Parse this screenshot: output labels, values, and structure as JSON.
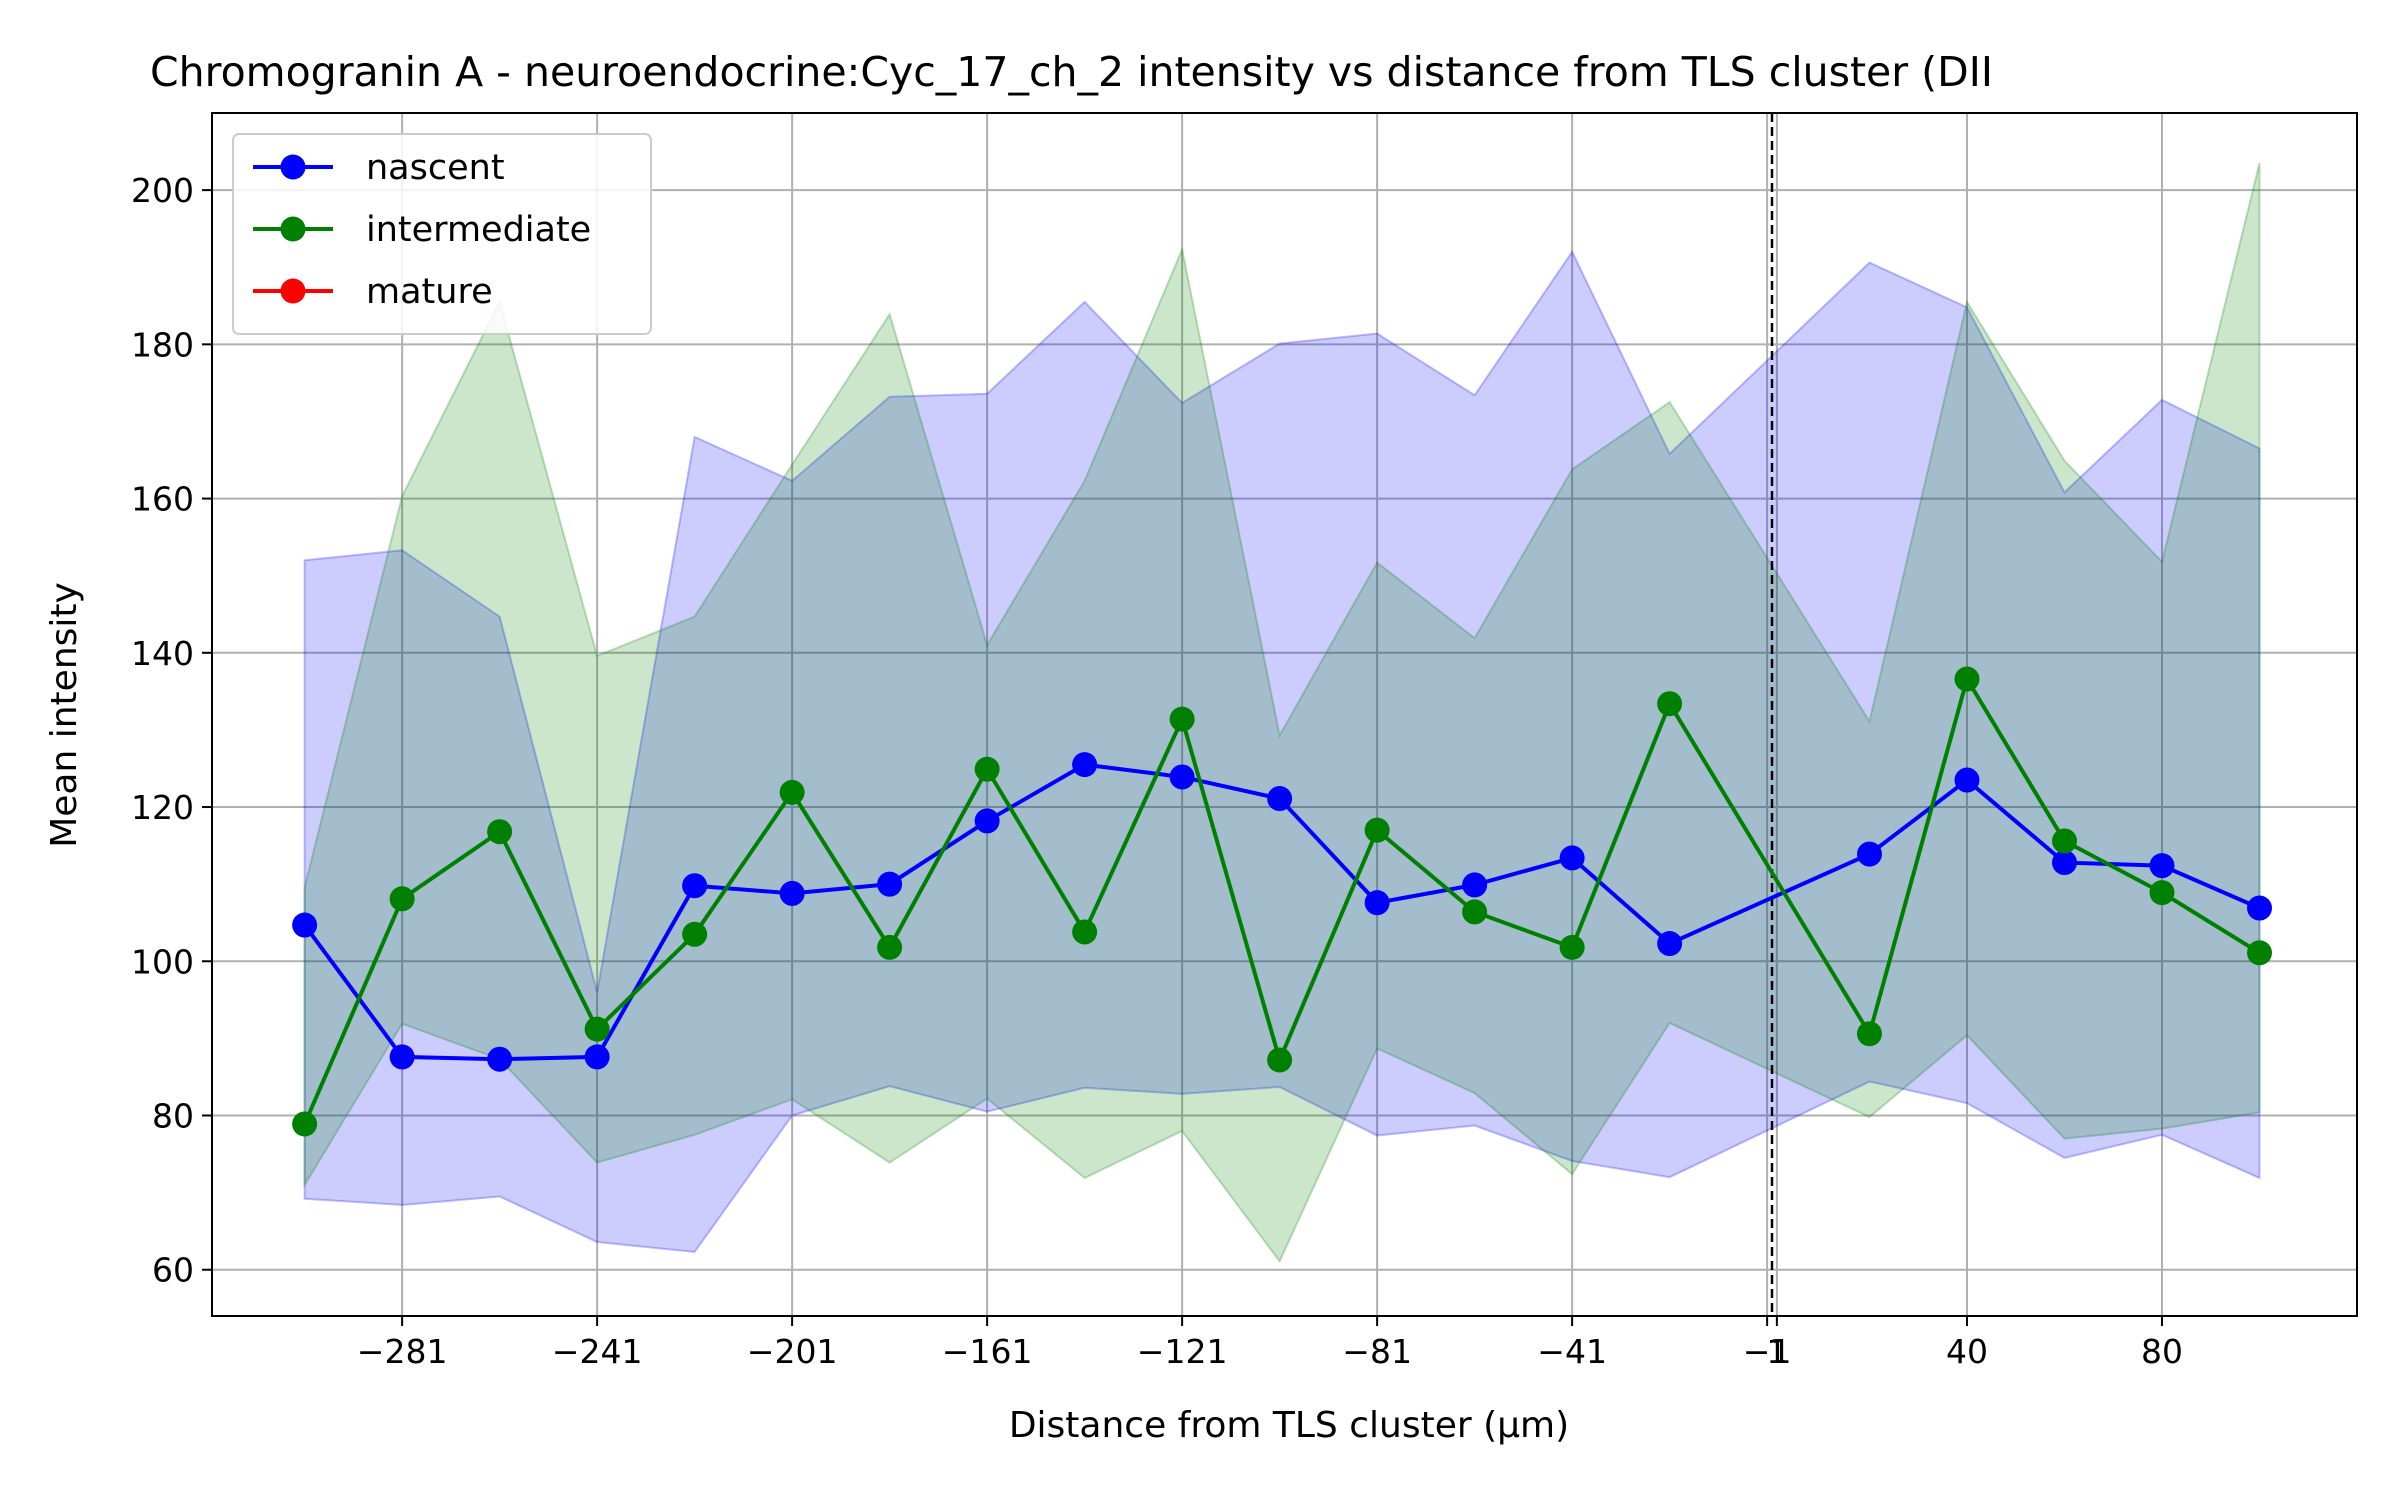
{
  "chart_data": {
    "type": "line",
    "title": "Chromogranin A - neuroendocrine:Cyc_17_ch_2 intensity vs distance from TLS cluster (DII",
    "xlabel": "Distance from TLS cluster (μm)",
    "ylabel": "Mean intensity",
    "xlim": [
      -320,
      120
    ],
    "ylim": [
      54,
      210
    ],
    "x_ticks": [
      -281,
      -241,
      -201,
      -161,
      -121,
      -81,
      -41,
      -1,
      1,
      40,
      80
    ],
    "x_tick_labels": [
      "−281",
      "−241",
      "−201",
      "−161",
      "−121",
      "−81",
      "−41",
      "−1",
      "1",
      "40",
      "80"
    ],
    "y_ticks": [
      60,
      80,
      100,
      120,
      140,
      160,
      180,
      200
    ],
    "y_tick_labels": [
      "60",
      "80",
      "100",
      "120",
      "140",
      "160",
      "180",
      "200"
    ],
    "grid": true,
    "legend_position": "top-left",
    "vline_x": 0,
    "series": [
      {
        "name": "nascent",
        "color": "#0000ff",
        "x": [
          -301,
          -281,
          -261,
          -241,
          -221,
          -201,
          -181,
          -161,
          -141,
          -121,
          -101,
          -81,
          -61,
          -41,
          -21,
          20,
          40,
          60,
          80,
          100
        ],
        "values": [
          104.7,
          87.6,
          87.3,
          87.6,
          109.8,
          108.8,
          110.0,
          118.2,
          125.5,
          123.9,
          121.1,
          107.6,
          109.9,
          113.4,
          102.3,
          113.9,
          123.5,
          112.8,
          112.4,
          106.9
        ],
        "band_upper": [
          152.0,
          153.3,
          144.7,
          96.0,
          168.0,
          162.3,
          173.2,
          173.6,
          185.5,
          172.4,
          180.1,
          181.4,
          173.4,
          192.0,
          165.8,
          190.6,
          184.8,
          160.8,
          172.8,
          166.5
        ],
        "band_lower": [
          69.2,
          68.4,
          69.5,
          63.6,
          62.3,
          80.0,
          83.8,
          80.5,
          83.6,
          82.8,
          83.7,
          77.4,
          78.7,
          74.1,
          72.0,
          84.4,
          81.6,
          74.5,
          77.5,
          71.9
        ]
      },
      {
        "name": "intermediate",
        "color": "#008000",
        "x": [
          -301,
          -281,
          -261,
          -241,
          -221,
          -201,
          -181,
          -161,
          -141,
          -121,
          -101,
          -81,
          -61,
          -41,
          -21,
          20,
          40,
          60,
          80,
          100
        ],
        "values": [
          78.9,
          108.1,
          116.8,
          91.2,
          103.5,
          121.9,
          101.8,
          124.9,
          103.8,
          131.4,
          87.2,
          117.0,
          106.4,
          101.8,
          133.4,
          90.6,
          136.6,
          115.6,
          108.9,
          101.1
        ],
        "band_upper": [
          109.6,
          160.3,
          185.5,
          139.6,
          144.7,
          164.4,
          183.9,
          141.0,
          162.3,
          192.3,
          129.3,
          151.7,
          141.9,
          163.8,
          172.5,
          131.1,
          185.5,
          164.9,
          151.8,
          203.5
        ],
        "band_lower": [
          71.0,
          91.9,
          87.3,
          73.9,
          77.5,
          82.1,
          73.9,
          82.2,
          71.9,
          78.0,
          61.1,
          88.7,
          82.9,
          72.4,
          92.0,
          79.8,
          90.4,
          77.0,
          78.3,
          80.4
        ]
      },
      {
        "name": "mature",
        "color": "#ff0000",
        "x": [],
        "values": [],
        "band_upper": [],
        "band_lower": []
      }
    ]
  }
}
